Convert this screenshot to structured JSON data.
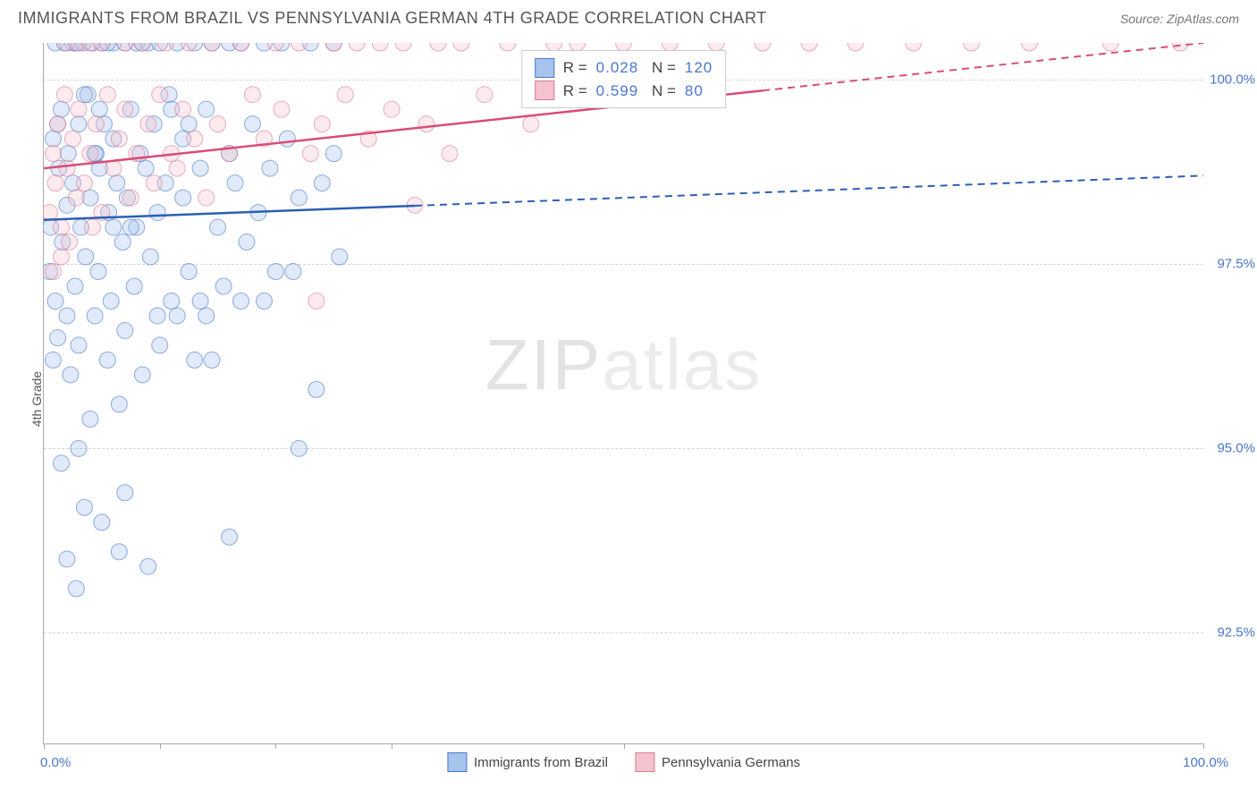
{
  "title": "IMMIGRANTS FROM BRAZIL VS PENNSYLVANIA GERMAN 4TH GRADE CORRELATION CHART",
  "source": "Source: ZipAtlas.com",
  "watermark": {
    "part1": "ZIP",
    "part2": "atlas"
  },
  "chart": {
    "type": "scatter",
    "ylabel": "4th Grade",
    "xlim": [
      0,
      100
    ],
    "ylim": [
      91,
      100.5
    ],
    "y_ticks": [
      92.5,
      95.0,
      97.5,
      100.0
    ],
    "y_tick_labels": [
      "92.5%",
      "95.0%",
      "97.5%",
      "100.0%"
    ],
    "x_ticks": [
      0,
      10,
      20,
      30,
      50,
      100
    ],
    "x_tick_labels": {
      "0": "0.0%",
      "100": "100.0%"
    },
    "grid_color": "#d5d5d5",
    "axis_color": "#aaaaaa",
    "tick_label_color": "#4a76cc",
    "background_color": "#ffffff",
    "marker_radius": 9,
    "marker_opacity": 0.35,
    "series": [
      {
        "name": "Immigrants from Brazil",
        "fill_color": "#a7c4ec",
        "stroke_color": "#4a76cc",
        "line_color": "#2c5fb3",
        "R": "0.028",
        "N": "120",
        "trend": {
          "y_start": 98.1,
          "y_end": 98.7,
          "solid_until_x": 32
        },
        "points": [
          [
            0.5,
            97.4
          ],
          [
            0.6,
            98.0
          ],
          [
            0.8,
            99.2
          ],
          [
            1.0,
            97.0
          ],
          [
            1.0,
            100.5
          ],
          [
            1.2,
            96.5
          ],
          [
            1.3,
            98.8
          ],
          [
            1.5,
            99.6
          ],
          [
            1.5,
            94.8
          ],
          [
            1.6,
            97.8
          ],
          [
            1.8,
            100.5
          ],
          [
            2.0,
            98.3
          ],
          [
            2.0,
            93.5
          ],
          [
            2.1,
            99.0
          ],
          [
            2.3,
            96.0
          ],
          [
            2.5,
            98.6
          ],
          [
            2.5,
            100.5
          ],
          [
            2.7,
            97.2
          ],
          [
            2.8,
            93.1
          ],
          [
            3.0,
            99.4
          ],
          [
            3.0,
            96.4
          ],
          [
            3.2,
            98.0
          ],
          [
            3.4,
            100.5
          ],
          [
            3.5,
            94.2
          ],
          [
            3.6,
            97.6
          ],
          [
            3.8,
            99.8
          ],
          [
            4.0,
            98.4
          ],
          [
            4.0,
            95.4
          ],
          [
            4.2,
            100.5
          ],
          [
            4.4,
            96.8
          ],
          [
            4.5,
            99.0
          ],
          [
            4.7,
            97.4
          ],
          [
            4.8,
            98.8
          ],
          [
            5.0,
            100.5
          ],
          [
            5.0,
            94.0
          ],
          [
            5.2,
            99.4
          ],
          [
            5.5,
            96.2
          ],
          [
            5.6,
            98.2
          ],
          [
            5.8,
            97.0
          ],
          [
            6.0,
            100.5
          ],
          [
            6.0,
            99.2
          ],
          [
            6.3,
            98.6
          ],
          [
            6.5,
            95.6
          ],
          [
            6.8,
            97.8
          ],
          [
            7.0,
            100.5
          ],
          [
            7.0,
            96.6
          ],
          [
            7.2,
            98.4
          ],
          [
            7.5,
            99.6
          ],
          [
            7.8,
            97.2
          ],
          [
            8.0,
            100.5
          ],
          [
            8.0,
            98.0
          ],
          [
            8.3,
            99.0
          ],
          [
            8.5,
            96.0
          ],
          [
            8.8,
            98.8
          ],
          [
            9.0,
            100.5
          ],
          [
            9.2,
            97.6
          ],
          [
            9.5,
            99.4
          ],
          [
            9.8,
            98.2
          ],
          [
            10.0,
            100.5
          ],
          [
            10.0,
            96.4
          ],
          [
            10.5,
            98.6
          ],
          [
            10.8,
            99.8
          ],
          [
            11.0,
            97.0
          ],
          [
            11.5,
            100.5
          ],
          [
            11.5,
            96.8
          ],
          [
            12.0,
            98.4
          ],
          [
            12.0,
            99.2
          ],
          [
            12.5,
            97.4
          ],
          [
            13.0,
            100.5
          ],
          [
            13.0,
            96.2
          ],
          [
            13.5,
            98.8
          ],
          [
            14.0,
            99.6
          ],
          [
            14.0,
            96.8
          ],
          [
            14.5,
            100.5
          ],
          [
            15.0,
            98.0
          ],
          [
            15.5,
            97.2
          ],
          [
            16.0,
            100.5
          ],
          [
            16.0,
            99.0
          ],
          [
            16.5,
            98.6
          ],
          [
            17.0,
            100.5
          ],
          [
            17.5,
            97.8
          ],
          [
            18.0,
            99.4
          ],
          [
            18.5,
            98.2
          ],
          [
            19.0,
            100.5
          ],
          [
            19.5,
            98.8
          ],
          [
            20.0,
            97.4
          ],
          [
            20.5,
            100.5
          ],
          [
            21.0,
            99.2
          ],
          [
            22.0,
            98.4
          ],
          [
            22.0,
            95.0
          ],
          [
            23.0,
            100.5
          ],
          [
            23.5,
            95.8
          ],
          [
            24.0,
            98.6
          ],
          [
            25.0,
            100.5
          ],
          [
            25.0,
            99.0
          ],
          [
            25.5,
            97.6
          ],
          [
            3.0,
            95.0
          ],
          [
            6.5,
            93.6
          ],
          [
            7.0,
            94.4
          ],
          [
            9.0,
            93.4
          ],
          [
            16.0,
            93.8
          ],
          [
            4.8,
            99.6
          ],
          [
            11.0,
            99.6
          ],
          [
            13.5,
            97.0
          ],
          [
            8.5,
            100.5
          ],
          [
            5.5,
            100.5
          ],
          [
            2.0,
            96.8
          ],
          [
            1.2,
            99.4
          ],
          [
            0.8,
            96.2
          ],
          [
            3.5,
            99.8
          ],
          [
            6.0,
            98.0
          ],
          [
            14.5,
            96.2
          ],
          [
            17.0,
            97.0
          ],
          [
            19.0,
            97.0
          ],
          [
            21.5,
            97.4
          ],
          [
            2.8,
            100.5
          ],
          [
            4.4,
            99.0
          ],
          [
            7.5,
            98.0
          ],
          [
            9.8,
            96.8
          ],
          [
            12.5,
            99.4
          ]
        ]
      },
      {
        "name": "Pennsylvania Germans",
        "fill_color": "#f3c3cf",
        "stroke_color": "#d97a95",
        "line_color": "#d94d76",
        "R": "0.599",
        "N": " 80",
        "trend": {
          "y_start": 98.8,
          "y_end": 100.5,
          "solid_until_x": 62
        },
        "points": [
          [
            0.5,
            98.2
          ],
          [
            0.8,
            99.0
          ],
          [
            1.0,
            98.6
          ],
          [
            1.2,
            99.4
          ],
          [
            1.5,
            98.0
          ],
          [
            1.8,
            99.8
          ],
          [
            2.0,
            98.8
          ],
          [
            2.0,
            100.5
          ],
          [
            2.5,
            99.2
          ],
          [
            2.8,
            98.4
          ],
          [
            3.0,
            99.6
          ],
          [
            3.0,
            100.5
          ],
          [
            3.5,
            98.6
          ],
          [
            4.0,
            99.0
          ],
          [
            4.0,
            100.5
          ],
          [
            4.5,
            99.4
          ],
          [
            5.0,
            98.2
          ],
          [
            5.0,
            100.5
          ],
          [
            5.5,
            99.8
          ],
          [
            6.0,
            98.8
          ],
          [
            6.5,
            99.2
          ],
          [
            7.0,
            100.5
          ],
          [
            7.0,
            99.6
          ],
          [
            7.5,
            98.4
          ],
          [
            8.0,
            99.0
          ],
          [
            8.5,
            100.5
          ],
          [
            9.0,
            99.4
          ],
          [
            9.5,
            98.6
          ],
          [
            10.0,
            99.8
          ],
          [
            10.5,
            100.5
          ],
          [
            11.0,
            99.0
          ],
          [
            11.5,
            98.8
          ],
          [
            12.0,
            99.6
          ],
          [
            12.5,
            100.5
          ],
          [
            13.0,
            99.2
          ],
          [
            14.0,
            98.4
          ],
          [
            14.5,
            100.5
          ],
          [
            15.0,
            99.4
          ],
          [
            16.0,
            99.0
          ],
          [
            17.0,
            100.5
          ],
          [
            18.0,
            99.8
          ],
          [
            19.0,
            99.2
          ],
          [
            20.0,
            100.5
          ],
          [
            20.5,
            99.6
          ],
          [
            22.0,
            100.5
          ],
          [
            23.0,
            99.0
          ],
          [
            24.0,
            99.4
          ],
          [
            25.0,
            100.5
          ],
          [
            26.0,
            99.8
          ],
          [
            27.0,
            100.5
          ],
          [
            28.0,
            99.2
          ],
          [
            29.0,
            100.5
          ],
          [
            30.0,
            99.6
          ],
          [
            31.0,
            100.5
          ],
          [
            32.0,
            98.3
          ],
          [
            33.0,
            99.4
          ],
          [
            34.0,
            100.5
          ],
          [
            35.0,
            99.0
          ],
          [
            36.0,
            100.5
          ],
          [
            38.0,
            99.8
          ],
          [
            40.0,
            100.5
          ],
          [
            42.0,
            99.4
          ],
          [
            44.0,
            100.5
          ],
          [
            46.0,
            100.5
          ],
          [
            50.0,
            100.5
          ],
          [
            54.0,
            100.5
          ],
          [
            58.0,
            100.5
          ],
          [
            62.0,
            100.5
          ],
          [
            66.0,
            100.5
          ],
          [
            70.0,
            100.5
          ],
          [
            75.0,
            100.5
          ],
          [
            80.0,
            100.5
          ],
          [
            85.0,
            100.5
          ],
          [
            92.0,
            100.5
          ],
          [
            98.0,
            100.5
          ],
          [
            23.5,
            97.0
          ],
          [
            2.2,
            97.8
          ],
          [
            1.5,
            97.6
          ],
          [
            0.8,
            97.4
          ],
          [
            4.2,
            98.0
          ]
        ]
      }
    ],
    "bottom_legend": [
      {
        "label": "Immigrants from Brazil",
        "fill": "#a7c4ec",
        "stroke": "#4a76cc"
      },
      {
        "label": "Pennsylvania Germans",
        "fill": "#f3c3cf",
        "stroke": "#d97a95"
      }
    ]
  }
}
